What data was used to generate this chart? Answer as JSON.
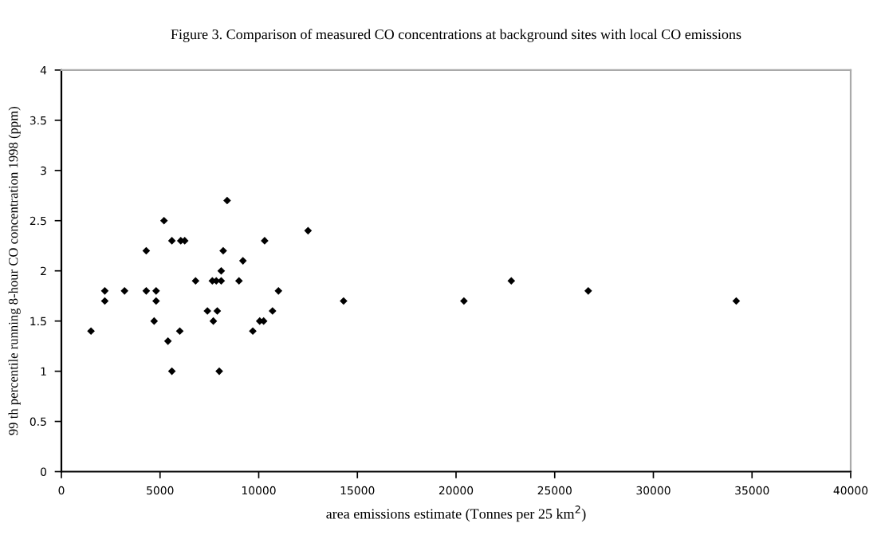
{
  "chart_data": {
    "type": "scatter",
    "title": "Figure 3. Comparison of measured CO concentrations at background sites with local CO emissions",
    "xlabel": "area emissions estimate (Tonnes per 25 km$^{2}$)",
    "ylabel": "99 th percentile running 8-hour CO concentration 1998 (ppm)",
    "x": [
      1500,
      2200,
      2200,
      3200,
      4300,
      4300,
      4700,
      4800,
      4800,
      5200,
      5400,
      5600,
      5600,
      6000,
      6050,
      6250,
      6800,
      7400,
      7650,
      7850,
      7700,
      7900,
      8000,
      8100,
      8100,
      8200,
      8400,
      9000,
      9200,
      9700,
      10050,
      10250,
      10300,
      10700,
      11000,
      12500,
      14300,
      20400,
      22800,
      26700,
      34200
    ],
    "values": [
      1.4,
      1.7,
      1.8,
      1.8,
      2.2,
      1.8,
      1.5,
      1.7,
      1.8,
      2.5,
      1.3,
      1.0,
      2.3,
      1.4,
      2.3,
      2.3,
      1.9,
      1.6,
      1.9,
      1.9,
      1.5,
      1.6,
      1.0,
      1.9,
      2.0,
      2.2,
      2.7,
      1.9,
      2.1,
      1.4,
      1.5,
      1.5,
      2.3,
      1.6,
      1.8,
      2.4,
      1.7,
      1.7,
      1.9,
      1.8,
      1.7
    ],
    "color": "#000000",
    "marker": "diamond",
    "xlim": [
      0,
      40000
    ],
    "xticks": [
      0,
      5000,
      10000,
      15000,
      20000,
      25000,
      30000,
      35000,
      40000
    ],
    "ylim": [
      0,
      4
    ],
    "yticks": [
      0,
      0.5,
      1,
      1.5,
      2,
      2.5,
      3,
      3.5,
      4
    ],
    "grid": false,
    "legend": false
  }
}
